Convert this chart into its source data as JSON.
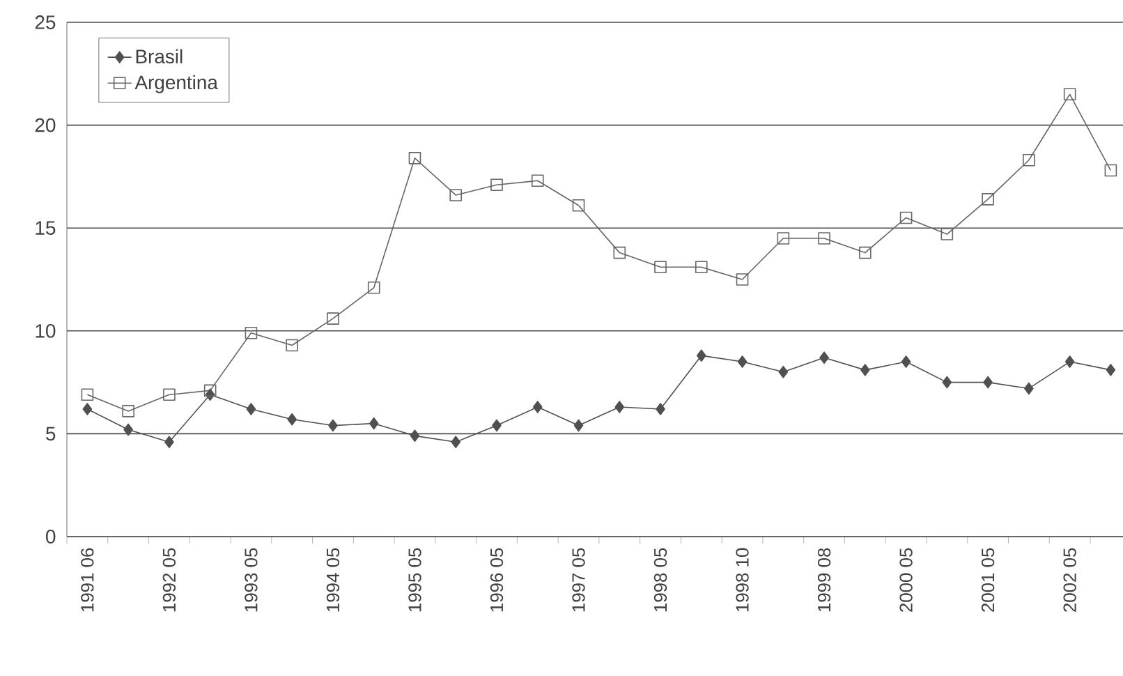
{
  "chart_data": {
    "type": "line",
    "categories": [
      "1991 06",
      null,
      "1992 05",
      null,
      "1993 05",
      null,
      "1994 05",
      null,
      "1995 05",
      null,
      "1996 05",
      null,
      "1997 05",
      null,
      "1998 05",
      null,
      "1998 10",
      null,
      "1999 08",
      null,
      "2000 05",
      null,
      "2001 05",
      null,
      "2002 05",
      null
    ],
    "series": [
      {
        "name": "Brasil",
        "color": "#505050",
        "marker": "diamond",
        "values": [
          6.2,
          5.2,
          4.6,
          6.9,
          6.2,
          5.7,
          5.4,
          5.5,
          4.9,
          4.6,
          5.4,
          6.3,
          5.4,
          6.3,
          6.2,
          8.8,
          8.5,
          8.0,
          8.7,
          8.1,
          8.5,
          7.5,
          7.5,
          7.2,
          8.5,
          8.1
        ]
      },
      {
        "name": "Argentina",
        "color": "#666666",
        "marker": "square",
        "values": [
          6.9,
          6.1,
          6.9,
          7.1,
          9.9,
          9.3,
          10.6,
          12.1,
          18.4,
          16.6,
          17.1,
          17.3,
          16.1,
          13.8,
          13.1,
          13.1,
          12.5,
          14.5,
          14.5,
          13.8,
          15.5,
          14.7,
          16.4,
          18.3,
          21.5,
          17.8
        ]
      }
    ],
    "ylim": [
      0,
      25
    ],
    "yticks": [
      0,
      5,
      10,
      15,
      20,
      25
    ],
    "grid": "y",
    "legend": "top left",
    "line_style": "solid"
  }
}
